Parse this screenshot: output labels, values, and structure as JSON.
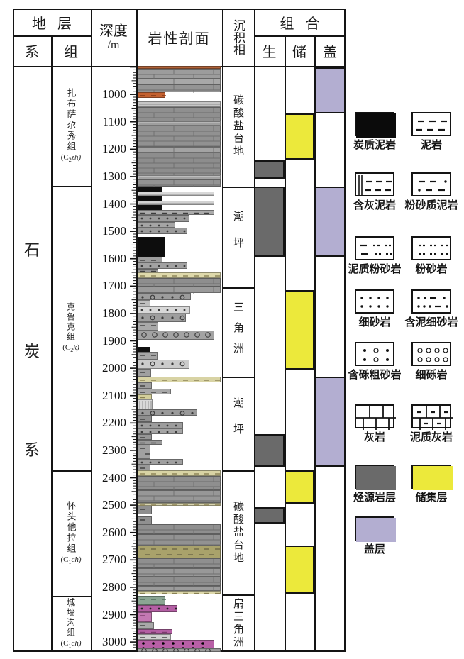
{
  "header": {
    "strata": "地层",
    "system_col": "系",
    "formation_col": "组",
    "depth": "深度",
    "depth_unit": "/m",
    "lithology": "岩性剖面",
    "facies": "沉积相",
    "combo": "组合",
    "source": "生",
    "reservoir": "储",
    "cap": "盖"
  },
  "colors": {
    "border": "#141414",
    "source_rock": "#6a6a6a",
    "reservoir_bed": "#ece93b",
    "cap_rock": "#b3aed1"
  },
  "chart_data": {
    "type": "stratigraphic-column",
    "depth_axis": {
      "label": "深度",
      "unit": "/m",
      "tick_min": 1000,
      "tick_max": 3000,
      "tick_step": 100,
      "minor_step": 10,
      "top_depth": 896,
      "bottom_depth": 3036
    },
    "system": {
      "name": "石炭系",
      "chars": [
        "石",
        "炭",
        "系"
      ],
      "char_centers_m": [
        1560,
        1930,
        2290
      ]
    },
    "formations": [
      {
        "name": "扎布萨尕秀组",
        "code_pre": "(C",
        "code_sub": "2",
        "code_suf": "zh)",
        "from": 896,
        "to": 1334
      },
      {
        "name": "克鲁克组",
        "code_pre": "(C",
        "code_sub": "2",
        "code_suf": "k)",
        "from": 1334,
        "to": 2373
      },
      {
        "name": "怀头他拉组",
        "code_pre": "(C",
        "code_sub": "1",
        "code_suf": "ch)",
        "from": 2373,
        "to": 2831
      },
      {
        "name": "城墙沟组",
        "code_pre": "(C",
        "code_sub": "1",
        "code_suf": "ch)",
        "from": 2831,
        "to": 3036
      }
    ],
    "facies_intervals": [
      {
        "label": "碳酸盐台地",
        "from": 896,
        "to": 1337
      },
      {
        "label": "潮坪",
        "from": 1337,
        "to": 1705
      },
      {
        "label": "三角洲",
        "from": 1705,
        "to": 2031
      },
      {
        "label": "潮坪",
        "from": 2031,
        "to": 2373
      },
      {
        "label": "碳酸盐台地",
        "from": 2373,
        "to": 2826
      },
      {
        "label": "扇三角洲",
        "from": 2826,
        "to": 3036
      }
    ],
    "combo_intervals": {
      "source": [
        [
          1241,
          1308
        ],
        [
          1337,
          1593
        ],
        [
          2241,
          2360
        ],
        [
          2508,
          2567
        ]
      ],
      "reservoir": [
        [
          1070,
          1238
        ],
        [
          1715,
          2005
        ],
        [
          2373,
          2495
        ],
        [
          2647,
          2823
        ]
      ],
      "cap": [
        [
          901,
          1070
        ],
        [
          1337,
          1593
        ],
        [
          2031,
          2360
        ]
      ]
    },
    "lithology_beds": [
      [
        896,
        907,
        100,
        "#b06238",
        "none",
        ""
      ],
      [
        907,
        943,
        100,
        "#9c9c9c",
        "bricks",
        ""
      ],
      [
        943,
        964,
        100,
        "#a8a8a8",
        "bricks",
        ""
      ],
      [
        964,
        992,
        100,
        "#949494",
        "bricks",
        ""
      ],
      [
        992,
        1013,
        33,
        "#c3602f",
        "dash",
        "#7a3414"
      ],
      [
        1026,
        1047,
        100,
        "#c6c6c6",
        "lines",
        ""
      ],
      [
        1047,
        1098,
        100,
        "#8f8f8f",
        "bricks",
        ""
      ],
      [
        1098,
        1114,
        100,
        "#b5b5b5",
        "lines",
        ""
      ],
      [
        1114,
        1192,
        100,
        "#919191",
        "bricks",
        ""
      ],
      [
        1192,
        1212,
        100,
        "#a3a3a3",
        "bricks",
        ""
      ],
      [
        1212,
        1295,
        100,
        "#8d8d8d",
        "bricks",
        ""
      ],
      [
        1295,
        1311,
        100,
        "#bdbdbd",
        "lines",
        ""
      ],
      [
        1311,
        1337,
        100,
        "#939393",
        "bricks",
        ""
      ],
      [
        1337,
        1355,
        30,
        "#101010",
        "none",
        ""
      ],
      [
        1355,
        1370,
        92,
        "#d9d9d9",
        "lines",
        ""
      ],
      [
        1370,
        1388,
        30,
        "#101010",
        "none",
        ""
      ],
      [
        1388,
        1404,
        92,
        "#d2d2d2",
        "lines",
        ""
      ],
      [
        1404,
        1422,
        30,
        "#101010",
        "none",
        ""
      ],
      [
        1422,
        1440,
        92,
        "#ababab",
        "dash",
        ""
      ],
      [
        1440,
        1466,
        62,
        "#9b9b9b",
        "dots",
        ""
      ],
      [
        1466,
        1487,
        45,
        "#a5a5a5",
        "dots",
        ""
      ],
      [
        1487,
        1510,
        60,
        "#9b9b9b",
        "dots",
        ""
      ],
      [
        1521,
        1593,
        33,
        "#0d0d0d",
        "none",
        ""
      ],
      [
        1593,
        1614,
        30,
        "#9d9d9d",
        "dash",
        ""
      ],
      [
        1614,
        1637,
        60,
        "#a2a2a2",
        "dots",
        ""
      ],
      [
        1637,
        1650,
        25,
        "#999999",
        "dash",
        ""
      ],
      [
        1650,
        1671,
        100,
        "#ded9ab",
        "dash",
        "#8a8153"
      ],
      [
        1671,
        1702,
        100,
        "#8e8e8e",
        "bricks",
        ""
      ],
      [
        1702,
        1725,
        100,
        "#9a9a9a",
        "bricks",
        ""
      ],
      [
        1725,
        1751,
        64,
        "#9c9c9c",
        "dotcirc",
        ""
      ],
      [
        1751,
        1774,
        15,
        "#bfbfbf",
        "dash",
        ""
      ],
      [
        1774,
        1800,
        63,
        "#d8d8d8",
        "dots",
        ""
      ],
      [
        1800,
        1831,
        58,
        "#9e9e9e",
        "dotcirc",
        ""
      ],
      [
        1831,
        1862,
        25,
        "#a8a8a8",
        "dash",
        ""
      ],
      [
        1862,
        1896,
        92,
        "#a3a3a3",
        "circles",
        ""
      ],
      [
        1922,
        1940,
        15,
        "#101010",
        "none",
        ""
      ],
      [
        1940,
        1968,
        24,
        "#a5a5a5",
        "dash",
        ""
      ],
      [
        1968,
        2002,
        62,
        "#cbcbcb",
        "dotcirc",
        ""
      ],
      [
        2002,
        2031,
        16,
        "#a0a0a0",
        "dash",
        ""
      ],
      [
        2031,
        2051,
        100,
        "#d8d3a4",
        "dash",
        "#8a8153"
      ],
      [
        2051,
        2075,
        17,
        "#9f9f9f",
        "dash",
        ""
      ],
      [
        2075,
        2095,
        40,
        "#a8a8a8",
        "dash",
        ""
      ],
      [
        2095,
        2113,
        17,
        "#d3cf9b",
        "dash",
        "#8a8153"
      ],
      [
        2113,
        2150,
        18,
        "#d9d9d9",
        "vlines",
        ""
      ],
      [
        2150,
        2173,
        72,
        "#9a9a9a",
        "dotcirc",
        ""
      ],
      [
        2173,
        2196,
        17,
        "#8f8f8f",
        "dash",
        ""
      ],
      [
        2196,
        2220,
        55,
        "#9d9d9d",
        "dots",
        ""
      ],
      [
        2220,
        2241,
        55,
        "#a5a5a5",
        "dots",
        ""
      ],
      [
        2241,
        2261,
        17,
        "#979797",
        "dash",
        ""
      ],
      [
        2261,
        2279,
        30,
        "#9a9a9a",
        "dash",
        ""
      ],
      [
        2279,
        2331,
        15,
        "#a1a1a1",
        "dash",
        ""
      ],
      [
        2331,
        2352,
        55,
        "#a0a0a0",
        "dots",
        ""
      ],
      [
        2352,
        2373,
        15,
        "#9a9a9a",
        "dash",
        ""
      ],
      [
        2373,
        2393,
        100,
        "#d8d3a4",
        "dash",
        "#8a8153"
      ],
      [
        2393,
        2445,
        100,
        "#8f8f8f",
        "bricks",
        ""
      ],
      [
        2445,
        2492,
        100,
        "#979797",
        "bricks",
        ""
      ],
      [
        2492,
        2502,
        100,
        "#d9d5ae",
        "dash",
        "#8a8153"
      ],
      [
        2502,
        2533,
        17,
        "#8f8f8f",
        "dash",
        ""
      ],
      [
        2541,
        2569,
        17,
        "#909090",
        "dash",
        ""
      ],
      [
        2569,
        2605,
        100,
        "#8f8f8f",
        "bricks",
        ""
      ],
      [
        2605,
        2647,
        100,
        "#929292",
        "bricks",
        ""
      ],
      [
        2647,
        2693,
        100,
        "#a9a26b",
        "dash",
        "#6d6747"
      ],
      [
        2693,
        2730,
        100,
        "#8f8f8f",
        "bricks",
        ""
      ],
      [
        2730,
        2761,
        100,
        "#989898",
        "bricks",
        ""
      ],
      [
        2761,
        2794,
        100,
        "#8e8e8e",
        "bricks",
        ""
      ],
      [
        2794,
        2813,
        100,
        "#9b9b9b",
        "bricks",
        ""
      ],
      [
        2813,
        2826,
        100,
        "#ded9ab",
        "dash",
        "#8a8153"
      ],
      [
        2831,
        2865,
        33,
        "#8ba593",
        "dash",
        "#4e6a58"
      ],
      [
        2865,
        2891,
        48,
        "#b45fa4",
        "dots",
        "#222222"
      ],
      [
        2891,
        2927,
        17,
        "#c478b3",
        "dash",
        "#7c3c6e"
      ],
      [
        2927,
        2953,
        20,
        "#a8a8a8",
        "dash",
        ""
      ],
      [
        2953,
        2971,
        42,
        "#b45fa4",
        "dash",
        "#7c3c6e"
      ],
      [
        2971,
        2992,
        40,
        "#cfcfcf",
        "dash",
        ""
      ],
      [
        2992,
        3023,
        92,
        "#b85fa6",
        "dotsblack",
        ""
      ],
      [
        3023,
        3036,
        100,
        "#9a9a9a",
        "circles",
        ""
      ]
    ]
  },
  "legend": {
    "items": [
      {
        "label": "炭质泥岩",
        "pattern": "carb-mudstone"
      },
      {
        "label": "泥岩",
        "pattern": "mudstone"
      },
      {
        "label": "含灰泥岩",
        "pattern": "limy-mudstone"
      },
      {
        "label": "粉砂质泥岩",
        "pattern": "silty-mudstone"
      },
      {
        "label": "泥质粉砂岩",
        "pattern": "muddy-siltstone"
      },
      {
        "label": "粉砂岩",
        "pattern": "siltstone"
      },
      {
        "label": "细砂岩",
        "pattern": "fine-sandstone"
      },
      {
        "label": "含泥细砂岩",
        "pattern": "muddy-fine-sandstone"
      },
      {
        "label": "含砾粗砂岩",
        "pattern": "pebbly-coarse-sandstone"
      },
      {
        "label": "细砾岩",
        "pattern": "fine-conglomerate"
      },
      {
        "label": "灰岩",
        "pattern": "limestone"
      },
      {
        "label": "泥质灰岩",
        "pattern": "muddy-limestone"
      },
      {
        "label": "烃源岩层",
        "pattern": "source-rock"
      },
      {
        "label": "储集层",
        "pattern": "reservoir-bed"
      },
      {
        "label": "盖层",
        "pattern": "cap-rock"
      }
    ]
  }
}
